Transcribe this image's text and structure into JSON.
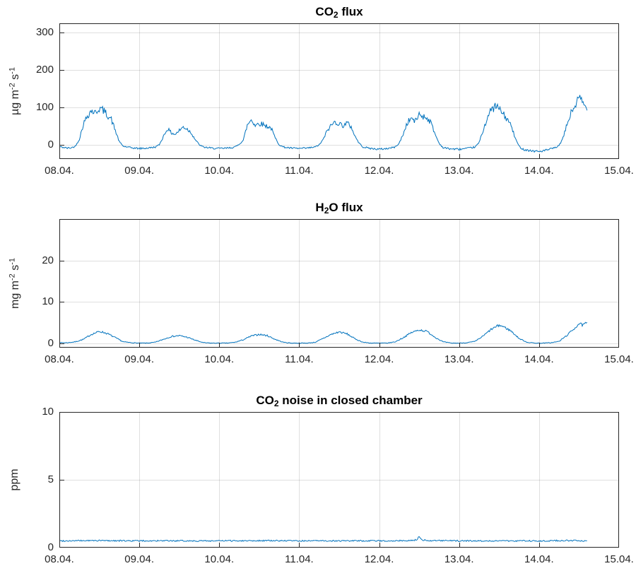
{
  "figure": {
    "background": "#ffffff",
    "line_color": "#0072BD",
    "grid_color": "rgba(38,38,38,0.15)",
    "axis_color": "#262626",
    "text_color": "#262626"
  },
  "chart_data": [
    {
      "type": "line",
      "title_parts": [
        {
          "t": "CO"
        },
        {
          "sub": "2"
        },
        {
          "t": " flux"
        }
      ],
      "ylabel_parts": [
        {
          "t": "µg m"
        },
        {
          "sup": "-2"
        },
        {
          "t": " s"
        },
        {
          "sup": "-1"
        }
      ],
      "xlim": [
        8,
        15
      ],
      "ylim": [
        -38,
        325
      ],
      "xticks": [
        8,
        9,
        10,
        11,
        12,
        13,
        14,
        15
      ],
      "xtick_labels": [
        "08.04.",
        "09.04.",
        "10.04.",
        "11.04.",
        "12.04.",
        "13.04.",
        "14.04.",
        "15.04."
      ],
      "yticks": [
        0,
        100,
        200,
        300
      ],
      "ytick_labels": [
        "0",
        "100",
        "200",
        "300"
      ],
      "grid": true,
      "noise": {
        "base": 1.5,
        "scale": 0.1,
        "seed": 42
      },
      "points": [
        [
          8.0,
          -5
        ],
        [
          8.05,
          -7
        ],
        [
          8.1,
          -9
        ],
        [
          8.15,
          -8
        ],
        [
          8.2,
          -4
        ],
        [
          8.25,
          15
        ],
        [
          8.3,
          55
        ],
        [
          8.35,
          78
        ],
        [
          8.4,
          92
        ],
        [
          8.45,
          85
        ],
        [
          8.5,
          98
        ],
        [
          8.55,
          92
        ],
        [
          8.6,
          80
        ],
        [
          8.65,
          68
        ],
        [
          8.7,
          38
        ],
        [
          8.75,
          8
        ],
        [
          8.8,
          -4
        ],
        [
          8.9,
          -8
        ],
        [
          9.0,
          -10
        ],
        [
          9.1,
          -9
        ],
        [
          9.2,
          -6
        ],
        [
          9.25,
          0
        ],
        [
          9.3,
          22
        ],
        [
          9.35,
          43
        ],
        [
          9.4,
          32
        ],
        [
          9.45,
          28
        ],
        [
          9.5,
          38
        ],
        [
          9.55,
          48
        ],
        [
          9.6,
          42
        ],
        [
          9.65,
          32
        ],
        [
          9.7,
          14
        ],
        [
          9.75,
          0
        ],
        [
          9.8,
          -6
        ],
        [
          9.9,
          -9
        ],
        [
          10.0,
          -10
        ],
        [
          10.1,
          -9
        ],
        [
          10.2,
          -6
        ],
        [
          10.25,
          2
        ],
        [
          10.3,
          12
        ],
        [
          10.35,
          52
        ],
        [
          10.4,
          68
        ],
        [
          10.45,
          52
        ],
        [
          10.5,
          58
        ],
        [
          10.55,
          54
        ],
        [
          10.6,
          50
        ],
        [
          10.65,
          44
        ],
        [
          10.7,
          18
        ],
        [
          10.75,
          0
        ],
        [
          10.8,
          -6
        ],
        [
          10.9,
          -9
        ],
        [
          11.0,
          -10
        ],
        [
          11.1,
          -9
        ],
        [
          11.2,
          -6
        ],
        [
          11.25,
          0
        ],
        [
          11.3,
          14
        ],
        [
          11.35,
          38
        ],
        [
          11.4,
          52
        ],
        [
          11.45,
          62
        ],
        [
          11.5,
          56
        ],
        [
          11.55,
          52
        ],
        [
          11.6,
          58
        ],
        [
          11.65,
          48
        ],
        [
          11.7,
          22
        ],
        [
          11.75,
          4
        ],
        [
          11.8,
          -6
        ],
        [
          11.9,
          -10
        ],
        [
          12.0,
          -12
        ],
        [
          12.1,
          -10
        ],
        [
          12.2,
          -6
        ],
        [
          12.25,
          4
        ],
        [
          12.3,
          28
        ],
        [
          12.35,
          58
        ],
        [
          12.4,
          72
        ],
        [
          12.45,
          62
        ],
        [
          12.5,
          82
        ],
        [
          12.55,
          76
        ],
        [
          12.6,
          72
        ],
        [
          12.65,
          58
        ],
        [
          12.7,
          28
        ],
        [
          12.75,
          4
        ],
        [
          12.8,
          -8
        ],
        [
          12.9,
          -11
        ],
        [
          13.0,
          -12
        ],
        [
          13.1,
          -10
        ],
        [
          13.2,
          -6
        ],
        [
          13.25,
          6
        ],
        [
          13.3,
          38
        ],
        [
          13.35,
          72
        ],
        [
          13.4,
          92
        ],
        [
          13.45,
          103
        ],
        [
          13.5,
          97
        ],
        [
          13.55,
          82
        ],
        [
          13.6,
          68
        ],
        [
          13.65,
          52
        ],
        [
          13.7,
          18
        ],
        [
          13.75,
          -4
        ],
        [
          13.8,
          -12
        ],
        [
          13.9,
          -16
        ],
        [
          14.0,
          -18
        ],
        [
          14.1,
          -14
        ],
        [
          14.2,
          -8
        ],
        [
          14.25,
          -2
        ],
        [
          14.3,
          18
        ],
        [
          14.35,
          55
        ],
        [
          14.4,
          85
        ],
        [
          14.45,
          105
        ],
        [
          14.5,
          125
        ],
        [
          14.55,
          112
        ],
        [
          14.6,
          92
        ]
      ]
    },
    {
      "type": "line",
      "title_parts": [
        {
          "t": "H"
        },
        {
          "sub": "2"
        },
        {
          "t": "O flux"
        }
      ],
      "ylabel_parts": [
        {
          "t": "mg m"
        },
        {
          "sup": "-2"
        },
        {
          "t": " s"
        },
        {
          "sup": "-1"
        }
      ],
      "xlim": [
        8,
        15
      ],
      "ylim": [
        -1,
        30
      ],
      "xticks": [
        8,
        9,
        10,
        11,
        12,
        13,
        14,
        15
      ],
      "xtick_labels": [
        "08.04.",
        "09.04.",
        "10.04.",
        "11.04.",
        "12.04.",
        "13.04.",
        "14.04.",
        "15.04."
      ],
      "yticks": [
        0,
        10,
        20
      ],
      "ytick_labels": [
        "0",
        "10",
        "20"
      ],
      "grid": true,
      "noise": {
        "base": 0.07,
        "scale": 0.06,
        "seed": 7
      },
      "points": [
        [
          8.0,
          0.2
        ],
        [
          8.1,
          0.2
        ],
        [
          8.2,
          0.4
        ],
        [
          8.3,
          1.0
        ],
        [
          8.4,
          2.2
        ],
        [
          8.5,
          2.9
        ],
        [
          8.55,
          2.7
        ],
        [
          8.6,
          2.4
        ],
        [
          8.7,
          1.4
        ],
        [
          8.8,
          0.4
        ],
        [
          8.9,
          0.2
        ],
        [
          9.0,
          0.1
        ],
        [
          9.1,
          0.1
        ],
        [
          9.2,
          0.3
        ],
        [
          9.3,
          1.0
        ],
        [
          9.4,
          1.7
        ],
        [
          9.5,
          1.9
        ],
        [
          9.6,
          1.5
        ],
        [
          9.7,
          0.8
        ],
        [
          9.8,
          0.2
        ],
        [
          9.9,
          0.1
        ],
        [
          10.0,
          0.1
        ],
        [
          10.1,
          0.1
        ],
        [
          10.2,
          0.3
        ],
        [
          10.3,
          0.9
        ],
        [
          10.4,
          1.8
        ],
        [
          10.5,
          2.2
        ],
        [
          10.6,
          1.9
        ],
        [
          10.7,
          1.0
        ],
        [
          10.8,
          0.3
        ],
        [
          10.9,
          0.1
        ],
        [
          11.0,
          0.1
        ],
        [
          11.1,
          0.1
        ],
        [
          11.2,
          0.3
        ],
        [
          11.3,
          1.2
        ],
        [
          11.4,
          2.2
        ],
        [
          11.5,
          2.8
        ],
        [
          11.6,
          2.3
        ],
        [
          11.7,
          1.1
        ],
        [
          11.8,
          0.3
        ],
        [
          11.9,
          0.1
        ],
        [
          12.0,
          0.1
        ],
        [
          12.1,
          0.1
        ],
        [
          12.2,
          0.4
        ],
        [
          12.3,
          1.4
        ],
        [
          12.4,
          2.6
        ],
        [
          12.5,
          3.3
        ],
        [
          12.6,
          2.9
        ],
        [
          12.7,
          1.5
        ],
        [
          12.8,
          0.4
        ],
        [
          12.9,
          0.1
        ],
        [
          13.0,
          0.1
        ],
        [
          13.1,
          0.2
        ],
        [
          13.2,
          0.5
        ],
        [
          13.3,
          1.8
        ],
        [
          13.4,
          3.4
        ],
        [
          13.5,
          4.4
        ],
        [
          13.55,
          4.1
        ],
        [
          13.65,
          3.0
        ],
        [
          13.75,
          1.2
        ],
        [
          13.85,
          0.3
        ],
        [
          13.95,
          0.1
        ],
        [
          14.05,
          0.1
        ],
        [
          14.15,
          0.2
        ],
        [
          14.25,
          0.5
        ],
        [
          14.35,
          2.0
        ],
        [
          14.45,
          3.8
        ],
        [
          14.5,
          4.8
        ],
        [
          14.55,
          4.4
        ],
        [
          14.6,
          5.1
        ]
      ]
    },
    {
      "type": "line",
      "title_parts": [
        {
          "t": "CO"
        },
        {
          "sub": "2"
        },
        {
          "t": " noise in closed chamber"
        }
      ],
      "ylabel_parts": [
        {
          "t": "ppm"
        }
      ],
      "xlim": [
        8,
        15
      ],
      "ylim": [
        0,
        10
      ],
      "xticks": [
        8,
        9,
        10,
        11,
        12,
        13,
        14,
        15
      ],
      "xtick_labels": [
        "08.04.",
        "09.04.",
        "10.04.",
        "11.04.",
        "12.04.",
        "13.04.",
        "14.04.",
        "15.04."
      ],
      "yticks": [
        0,
        5,
        10
      ],
      "ytick_labels": [
        "0",
        "5",
        "10"
      ],
      "grid": true,
      "noise": {
        "base": 0.05,
        "scale": 0.0,
        "seed": 99
      },
      "points": [
        [
          8.0,
          0.5
        ],
        [
          8.5,
          0.52
        ],
        [
          9.0,
          0.5
        ],
        [
          9.5,
          0.5
        ],
        [
          10.0,
          0.5
        ],
        [
          10.5,
          0.52
        ],
        [
          11.0,
          0.5
        ],
        [
          11.5,
          0.5
        ],
        [
          12.0,
          0.5
        ],
        [
          12.4,
          0.52
        ],
        [
          12.47,
          0.58
        ],
        [
          12.5,
          0.85
        ],
        [
          12.53,
          0.58
        ],
        [
          12.6,
          0.52
        ],
        [
          13.0,
          0.5
        ],
        [
          13.5,
          0.5
        ],
        [
          14.0,
          0.5
        ],
        [
          14.3,
          0.52
        ],
        [
          14.6,
          0.5
        ]
      ]
    }
  ]
}
